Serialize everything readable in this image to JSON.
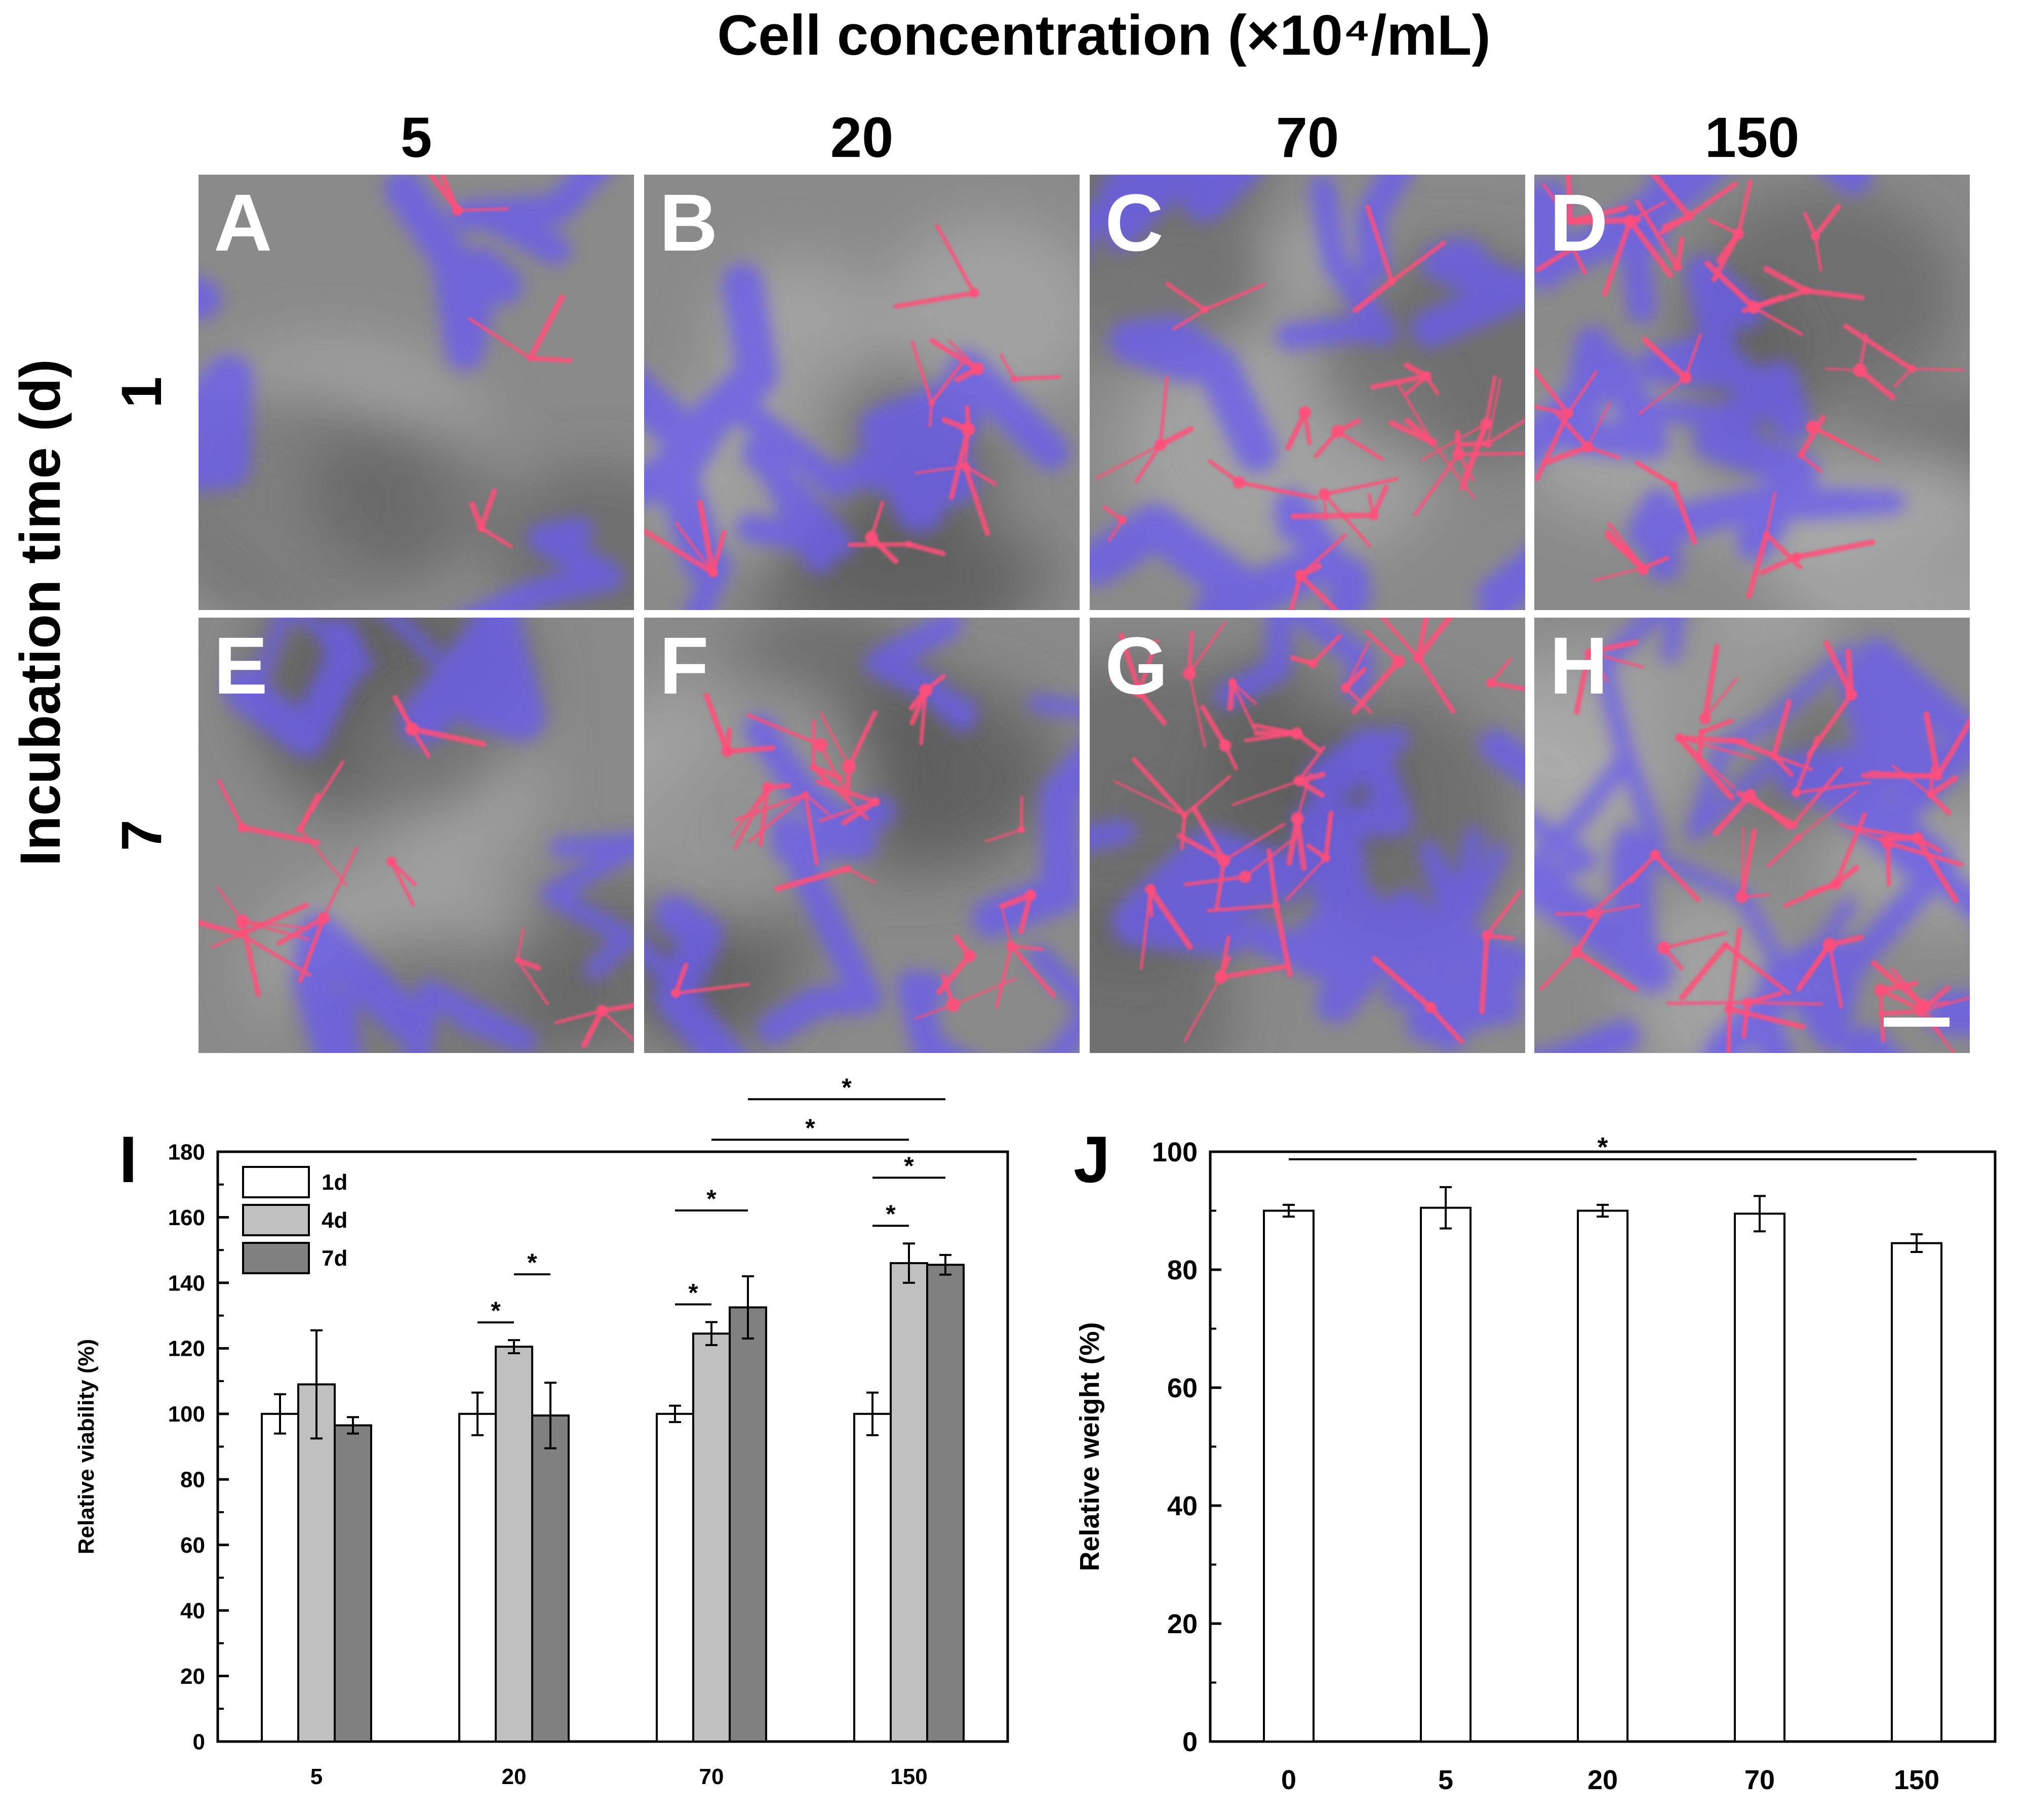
{
  "figure": {
    "column_header": "Cell concentration (×10⁴/mL)",
    "row_header": "Incubation time (d)",
    "column_labels": [
      "5",
      "20",
      "70",
      "150"
    ],
    "row_labels": [
      "1",
      "7"
    ],
    "panel_letters": [
      "A",
      "B",
      "C",
      "D",
      "E",
      "F",
      "G",
      "H"
    ],
    "colors": {
      "background_gray": "#8a8a8a",
      "scaffold_blue": "#6a5cf0",
      "cell_red": "#ff4f7a",
      "label_white": "#ffffff"
    }
  },
  "chart_data": [
    {
      "panel": "I",
      "type": "bar",
      "xlabel": "Cell concentration (×10⁴/mL)",
      "ylabel": "Relative viability (%)",
      "ylim": [
        0,
        180
      ],
      "yticks": [
        "0",
        "20",
        "40",
        "60",
        "80",
        "100",
        "120",
        "140",
        "160",
        "180"
      ],
      "categories": [
        "5",
        "20",
        "70",
        "150"
      ],
      "series": [
        {
          "name": "1d",
          "color": "#ffffff",
          "values": [
            100,
            100,
            100,
            100
          ],
          "errors": [
            6,
            6.5,
            2.5,
            6.5
          ]
        },
        {
          "name": "4d",
          "color": "#c0c0c0",
          "values": [
            109,
            120.5,
            124.5,
            146
          ],
          "errors": [
            16.5,
            2,
            3.5,
            6
          ]
        },
        {
          "name": "7d",
          "color": "#808080",
          "values": [
            96.5,
            99.5,
            132.5,
            145.5
          ],
          "errors": [
            2.5,
            10,
            9.5,
            3
          ]
        }
      ],
      "legend_position": "top-left",
      "significance_marks": [
        {
          "group": 1,
          "from": "1d",
          "to": "4d",
          "label": "*"
        },
        {
          "group": 1,
          "from": "4d",
          "to": "7d",
          "label": "*"
        },
        {
          "group": 2,
          "from": "1d",
          "to": "4d",
          "label": "*"
        },
        {
          "group": 2,
          "from": "1d",
          "to": "7d",
          "label": "*"
        },
        {
          "group": 3,
          "from": "1d",
          "to": "4d",
          "label": "*"
        },
        {
          "group": 3,
          "from": "1d",
          "to": "7d",
          "label": "*"
        },
        {
          "group_span": [
            2,
            3
          ],
          "series": "4d",
          "label": "*"
        },
        {
          "group_span": [
            2,
            3
          ],
          "series": "7d",
          "label": "*"
        }
      ]
    },
    {
      "panel": "J",
      "type": "bar",
      "xlabel": "Cell concentration (×10⁴/mL)",
      "ylabel": "Relative weight (%)",
      "ylim": [
        0,
        100
      ],
      "yticks": [
        "0",
        "20",
        "40",
        "60",
        "80",
        "100"
      ],
      "categories": [
        "0",
        "5",
        "20",
        "70",
        "150"
      ],
      "series": [
        {
          "name": "",
          "color": "#ffffff",
          "values": [
            90,
            90.5,
            90,
            89.5,
            84.5
          ],
          "errors": [
            1,
            3.5,
            1,
            3,
            1.5
          ]
        }
      ],
      "significance_marks": [
        {
          "from_category": "0",
          "to_category": "150",
          "label": "*"
        }
      ]
    }
  ]
}
